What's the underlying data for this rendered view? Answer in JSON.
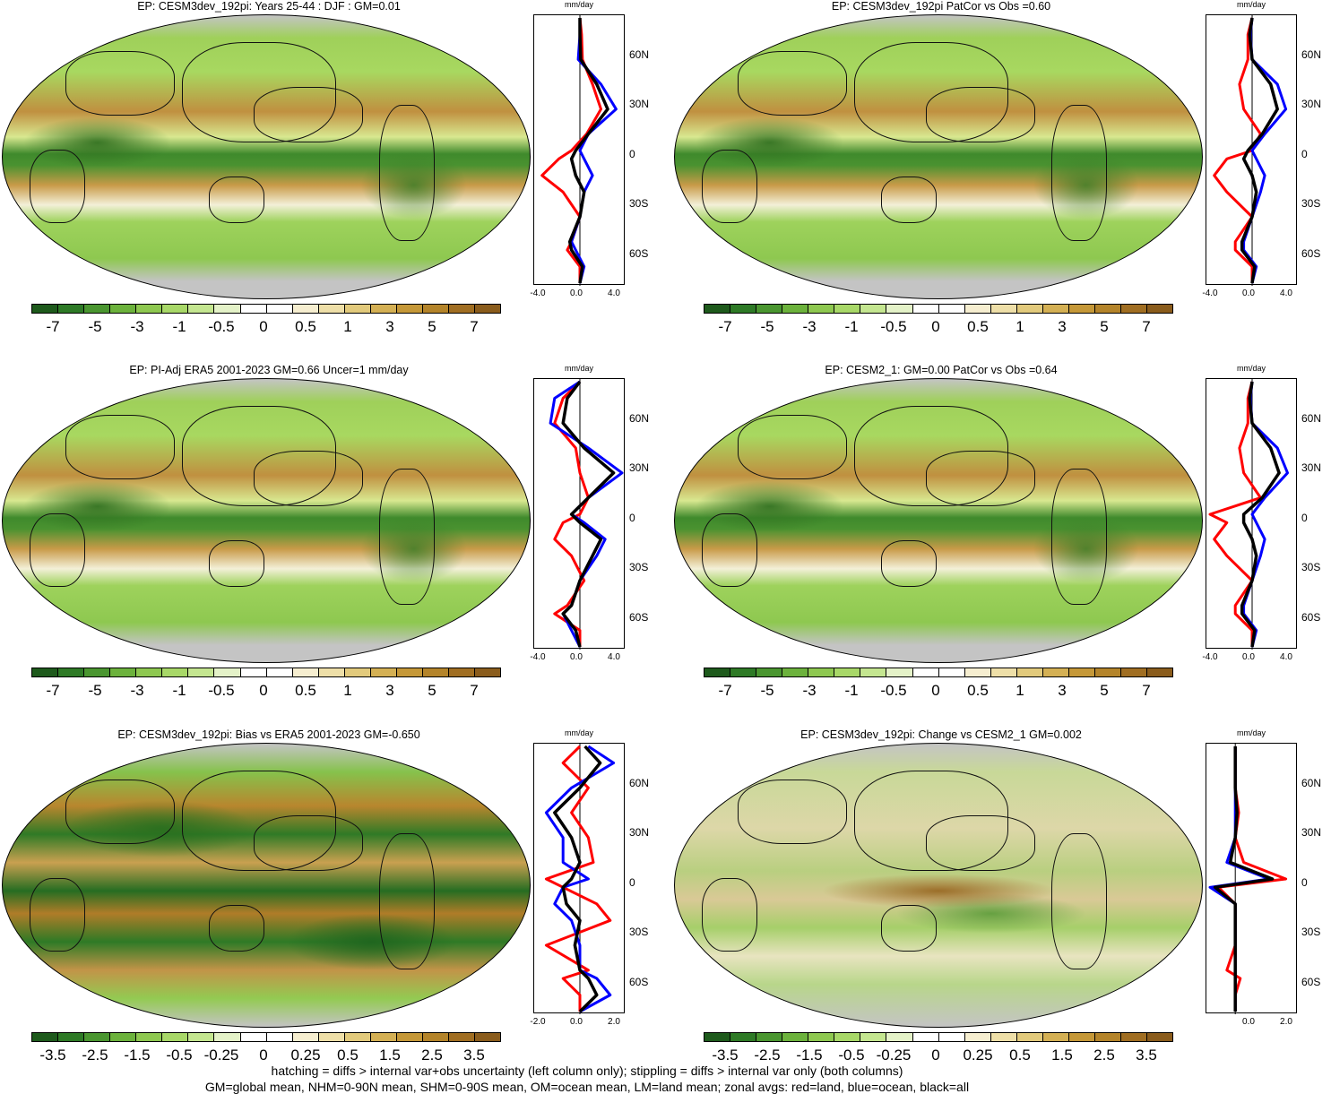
{
  "panels": [
    {
      "title": "EP: CESM3dev_192pi: Years 25-44 : DJF : GM=0.01",
      "style": "mean",
      "scale": "mean",
      "xticks": [
        "-4.0",
        "0.0",
        "4.0"
      ]
    },
    {
      "title": "EP: CESM3dev_192pi PatCor vs Obs =0.60",
      "style": "mean",
      "scale": "mean",
      "xticks": [
        "-4.0",
        "0.0",
        "4.0"
      ]
    },
    {
      "title": "EP: PI-Adj ERA5 2001-2023 GM=0.66 Uncer=1 mm/day",
      "style": "mean",
      "scale": "mean",
      "xticks": [
        "-4.0",
        "0.0",
        "4.0"
      ]
    },
    {
      "title": "EP: CESM2_1: GM=0.00 PatCor vs Obs =0.64",
      "style": "mean",
      "scale": "mean",
      "xticks": [
        "-4.0",
        "0.0",
        "4.0"
      ]
    },
    {
      "title": "EP: CESM3dev_192pi: Bias vs ERA5 2001-2023 GM=-0.650",
      "style": "bias",
      "scale": "diff",
      "xticks": [
        "-2.0",
        "0.0",
        "2.0"
      ]
    },
    {
      "title": "EP: CESM3dev_192pi: Change vs CESM2_1 GM=0.002",
      "style": "change",
      "scale": "diff",
      "xticks": [
        "",
        "0.0",
        "2.0"
      ]
    }
  ],
  "zonal_unit": "mm/day",
  "lat_labels": [
    "60N",
    "30N",
    "0",
    "30S",
    "60S"
  ],
  "colorbars": {
    "mean": {
      "labels": [
        "-7",
        "-5",
        "-3",
        "-1",
        "-0.5",
        "0",
        "0.5",
        "1",
        "3",
        "5",
        "7"
      ]
    },
    "diff": {
      "labels": [
        "-3.5",
        "-2.5",
        "-1.5",
        "-0.5",
        "-0.25",
        "0",
        "0.25",
        "0.5",
        "1.5",
        "2.5",
        "3.5"
      ]
    },
    "colors": [
      "#1e5a1c",
      "#2e7a26",
      "#4a9630",
      "#6cb23c",
      "#8ec850",
      "#a8d868",
      "#c4e690",
      "#e4f2c8",
      "#ffffff",
      "#ffffff",
      "#f6eed0",
      "#eedfa8",
      "#e2ca7c",
      "#d4b054",
      "#c59838",
      "#b4842a",
      "#a06e22",
      "#8a5c1c"
    ]
  },
  "footer": {
    "line1": "hatching = diffs > internal var+obs uncertainty (left column only); stippling = diffs > internal var only (both columns)",
    "line2": "GM=global mean, NHM=0-90N mean, SHM=0-90S mean, OM=ocean mean, LM=land mean; zonal avgs: red=land, blue=ocean, black=all"
  },
  "chart_data": [
    {
      "type": "line",
      "title": "EP: CESM3dev_192pi: Years 25-44 : DJF : GM=0.01",
      "xlabel": "mm/day",
      "xlim": [
        -5,
        5
      ],
      "series": [
        {
          "color": "#ff0000",
          "x": [
            0,
            0.2,
            0.3,
            1.5,
            2.5,
            0.8,
            -1,
            -2.5,
            -4.5,
            -2,
            0,
            -1,
            -1.5,
            0,
            0
          ],
          "y": [
            80,
            70,
            55,
            40,
            25,
            10,
            0,
            -5,
            -15,
            -25,
            -40,
            -55,
            -60,
            -70,
            -80
          ]
        },
        {
          "color": "#0000ff",
          "x": [
            0,
            0,
            -0.2,
            2.5,
            4.3,
            1,
            0,
            0.5,
            1.5,
            0.5,
            0,
            -1,
            -0.5,
            0.5,
            0
          ],
          "y": [
            80,
            70,
            55,
            40,
            25,
            10,
            0,
            -5,
            -15,
            -25,
            -40,
            -55,
            -60,
            -70,
            -80
          ]
        },
        {
          "color": "#000000",
          "x": [
            0,
            0,
            0.1,
            2,
            3.3,
            1,
            -0.5,
            -1,
            -0.5,
            0.5,
            0,
            -1.2,
            -1,
            0.3,
            0
          ],
          "y": [
            80,
            70,
            55,
            40,
            25,
            10,
            0,
            -5,
            -15,
            -25,
            -40,
            -55,
            -60,
            -70,
            -80
          ]
        }
      ]
    },
    {
      "type": "line",
      "title": "EP: CESM3dev_192pi PatCor vs Obs =0.60",
      "xlabel": "mm/day",
      "xlim": [
        -5,
        5
      ],
      "series": [
        {
          "color": "#ff0000",
          "x": [
            0,
            -0.5,
            -0.5,
            -1.5,
            -1,
            1,
            0,
            -3,
            -4.5,
            -3,
            0,
            -2,
            -2,
            0,
            0
          ],
          "y": [
            80,
            70,
            55,
            40,
            25,
            10,
            0,
            -5,
            -15,
            -25,
            -40,
            -55,
            -60,
            -70,
            -80
          ]
        },
        {
          "color": "#0000ff",
          "x": [
            0,
            -0.2,
            0,
            3,
            4,
            1.5,
            0,
            0.5,
            1.5,
            1,
            0,
            -1,
            -1,
            0.5,
            0
          ],
          "y": [
            80,
            70,
            55,
            40,
            25,
            10,
            0,
            -5,
            -15,
            -25,
            -40,
            -55,
            -60,
            -70,
            -80
          ]
        },
        {
          "color": "#000000",
          "x": [
            0,
            -0.3,
            0,
            2.2,
            3,
            1.2,
            -0.5,
            -1,
            0,
            0.5,
            0,
            -1.2,
            -1.2,
            0.3,
            0
          ],
          "y": [
            80,
            70,
            55,
            40,
            25,
            10,
            0,
            -5,
            -15,
            -25,
            -40,
            -55,
            -60,
            -70,
            -80
          ]
        }
      ]
    },
    {
      "type": "line",
      "title": "EP: PI-Adj ERA5 2001-2023 GM=0.66 Uncer=1 mm/day",
      "xlabel": "mm/day",
      "xlim": [
        -5,
        5
      ],
      "series": [
        {
          "color": "#ff0000",
          "x": [
            0,
            -2,
            -3,
            -0.5,
            0,
            1,
            0,
            -2,
            -3,
            -1,
            0.5,
            -1.5,
            -3,
            0,
            0
          ],
          "y": [
            80,
            70,
            55,
            40,
            25,
            10,
            0,
            -5,
            -15,
            -25,
            -40,
            -55,
            -60,
            -70,
            -80
          ]
        },
        {
          "color": "#0000ff",
          "x": [
            0,
            -3,
            -3.5,
            1,
            5,
            1,
            -1,
            0.5,
            3,
            2,
            0,
            -1,
            -2,
            -1,
            0
          ],
          "y": [
            80,
            70,
            55,
            40,
            25,
            10,
            0,
            -5,
            -15,
            -25,
            -40,
            -55,
            -60,
            -70,
            -80
          ]
        },
        {
          "color": "#000000",
          "x": [
            0,
            -1.5,
            -2,
            0.5,
            4,
            1,
            -1,
            0,
            2.5,
            1.5,
            0,
            -1,
            -2,
            -0.5,
            0
          ],
          "y": [
            80,
            70,
            55,
            40,
            25,
            10,
            0,
            -5,
            -15,
            -25,
            -40,
            -55,
            -60,
            -70,
            -80
          ]
        }
      ]
    },
    {
      "type": "line",
      "title": "EP: CESM2_1: GM=0.00 PatCor vs Obs =0.64",
      "xlabel": "mm/day",
      "xlim": [
        -5,
        5
      ],
      "series": [
        {
          "color": "#ff0000",
          "x": [
            0,
            -0.5,
            -0.5,
            -1.5,
            -1,
            1,
            -5,
            -3,
            -4.5,
            -3,
            0,
            -2,
            -2,
            0,
            0
          ],
          "y": [
            80,
            70,
            55,
            40,
            25,
            10,
            0,
            -5,
            -15,
            -25,
            -40,
            -55,
            -60,
            -70,
            -80
          ]
        },
        {
          "color": "#0000ff",
          "x": [
            0,
            -0.2,
            0,
            3,
            4.2,
            1.5,
            0,
            0.5,
            1.5,
            1,
            0,
            -1,
            -1,
            0.5,
            0
          ],
          "y": [
            80,
            70,
            55,
            40,
            25,
            10,
            0,
            -5,
            -15,
            -25,
            -40,
            -55,
            -60,
            -70,
            -80
          ]
        },
        {
          "color": "#000000",
          "x": [
            0,
            -0.3,
            0,
            2.2,
            3.2,
            1.2,
            -1,
            -1,
            0,
            0.5,
            0,
            -1.2,
            -1.2,
            0.3,
            0
          ],
          "y": [
            80,
            70,
            55,
            40,
            25,
            10,
            0,
            -5,
            -15,
            -25,
            -40,
            -55,
            -60,
            -70,
            -80
          ]
        }
      ]
    },
    {
      "type": "line",
      "title": "EP: CESM3dev_192pi: Bias vs ERA5 2001-2023 GM=-0.650",
      "xlabel": "mm/day",
      "xlim": [
        -2.5,
        2.5
      ],
      "series": [
        {
          "color": "#ff0000",
          "x": [
            0,
            -1,
            0.5,
            -0.5,
            0.5,
            0.8,
            -2,
            -1,
            1,
            1.8,
            -2,
            0.5,
            -1,
            0,
            0
          ],
          "y": [
            80,
            70,
            55,
            40,
            25,
            10,
            0,
            -5,
            -15,
            -25,
            -40,
            -55,
            -60,
            -70,
            -80
          ]
        },
        {
          "color": "#0000ff",
          "x": [
            0.5,
            2,
            -0.5,
            -2,
            -1,
            -1,
            0.5,
            -1,
            -1.5,
            -0.5,
            0,
            0,
            1,
            1.8,
            0
          ],
          "y": [
            80,
            70,
            55,
            40,
            25,
            10,
            0,
            -5,
            -15,
            -25,
            -40,
            -55,
            -60,
            -70,
            -80
          ]
        },
        {
          "color": "#000000",
          "x": [
            0.3,
            1.2,
            0,
            -1.5,
            -0.5,
            0,
            -0.5,
            -1,
            -0.8,
            0,
            -0.3,
            0,
            0.5,
            1,
            0
          ],
          "y": [
            80,
            70,
            55,
            40,
            25,
            10,
            0,
            -5,
            -15,
            -25,
            -40,
            -55,
            -60,
            -70,
            -80
          ]
        }
      ]
    },
    {
      "type": "line",
      "title": "EP: CESM3dev_192pi: Change vs CESM2_1 GM=0.002",
      "xlabel": "mm/day",
      "xlim": [
        -1.5,
        3.5
      ],
      "series": [
        {
          "color": "#ff0000",
          "x": [
            0,
            0,
            0,
            0.2,
            0,
            0.5,
            3,
            -1,
            0,
            0,
            0,
            -0.5,
            0.3,
            0,
            0
          ],
          "y": [
            80,
            70,
            55,
            40,
            25,
            10,
            0,
            -5,
            -15,
            -25,
            -40,
            -55,
            -60,
            -70,
            -80
          ]
        },
        {
          "color": "#0000ff",
          "x": [
            0,
            0,
            0,
            0,
            0,
            -0.5,
            2,
            -1.5,
            0,
            0,
            0,
            0,
            0,
            0,
            0
          ],
          "y": [
            80,
            70,
            55,
            40,
            25,
            10,
            0,
            -5,
            -15,
            -25,
            -40,
            -55,
            -60,
            -70,
            -80
          ]
        },
        {
          "color": "#000000",
          "x": [
            0,
            0,
            0,
            0.1,
            0,
            -0.3,
            2.2,
            -1.2,
            0,
            0,
            0,
            0,
            0,
            0,
            0
          ],
          "y": [
            80,
            70,
            55,
            40,
            25,
            10,
            0,
            -5,
            -15,
            -25,
            -40,
            -55,
            -60,
            -70,
            -80
          ]
        }
      ]
    }
  ]
}
